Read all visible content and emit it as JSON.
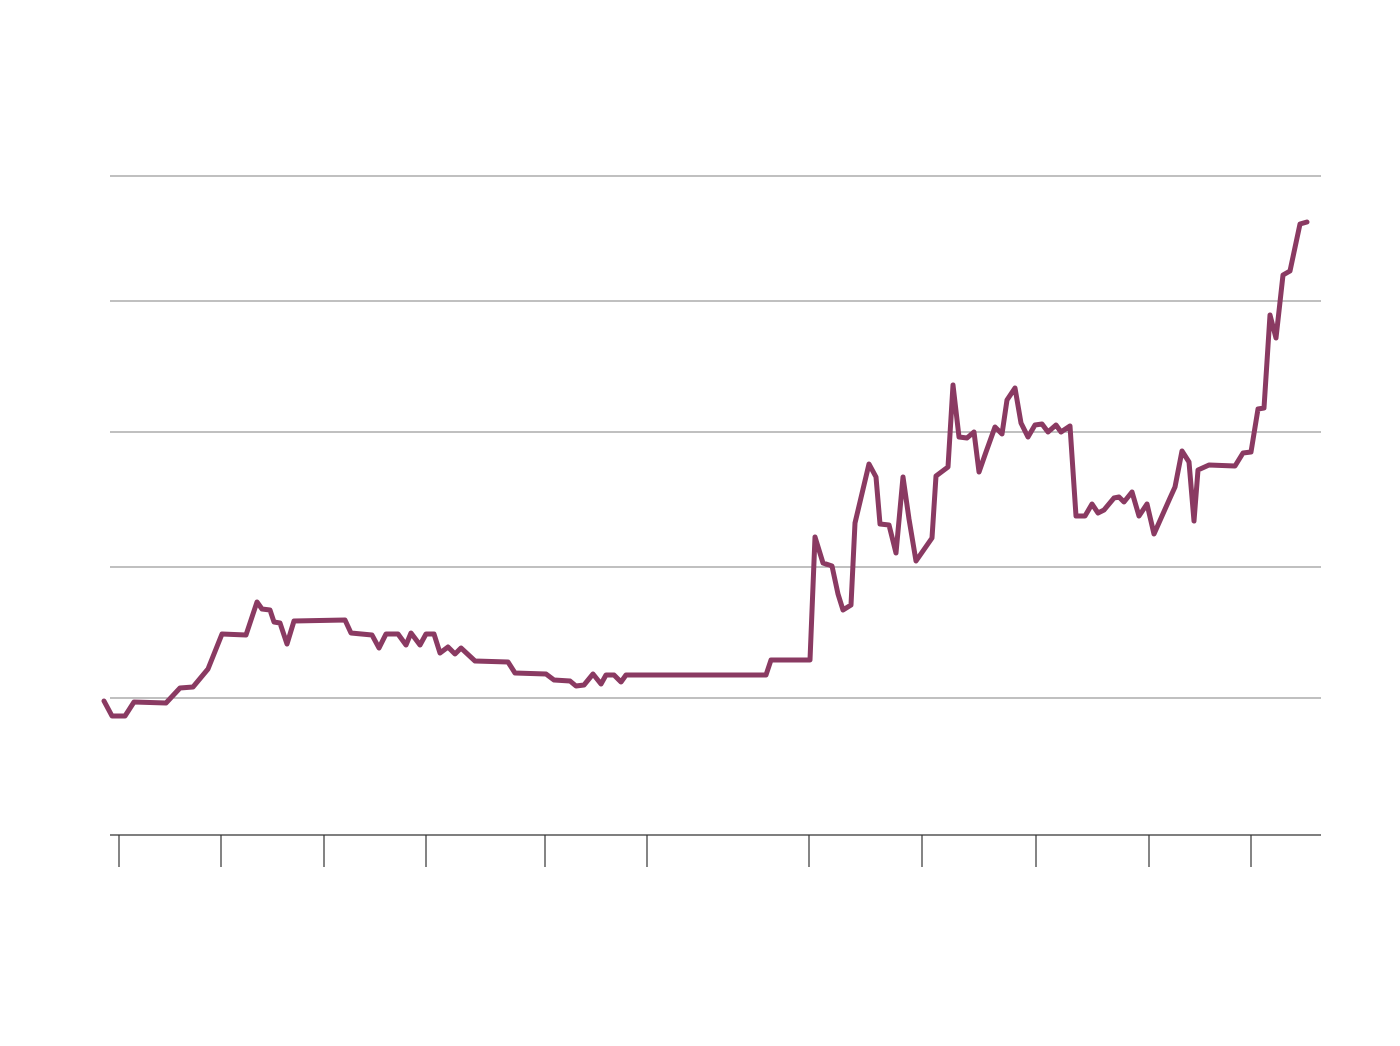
{
  "chart_data": {
    "type": "line",
    "x": [
      104,
      112,
      125,
      134,
      166,
      180,
      193,
      208,
      222,
      246,
      257,
      262,
      270,
      274,
      280,
      287,
      294,
      345,
      351,
      372,
      379,
      386,
      398,
      406,
      411,
      420,
      426,
      434,
      440,
      448,
      455,
      461,
      475,
      508,
      515,
      546,
      554,
      570,
      576,
      584,
      593,
      601,
      606,
      614,
      621,
      626,
      766,
      771,
      810,
      815,
      823,
      832,
      838,
      843,
      851,
      855,
      869,
      876,
      880,
      889,
      896,
      903,
      909,
      916,
      932,
      936,
      948,
      953,
      959,
      967,
      974,
      979,
      986,
      995,
      1002,
      1007,
      1015,
      1021,
      1028,
      1035,
      1042,
      1048,
      1056,
      1061,
      1070,
      1076,
      1085,
      1092,
      1098,
      1104,
      1114,
      1119,
      1124,
      1132,
      1139,
      1147,
      1154,
      1170,
      1175,
      1182,
      1189,
      1194,
      1198,
      1209,
      1235,
      1243,
      1251,
      1258,
      1264,
      1270,
      1276,
      1283,
      1290,
      1300,
      1307
    ],
    "series": [
      {
        "color": "#8a3a62",
        "values": [
          134,
          119,
          119,
          133,
          132,
          147,
          148,
          166,
          201,
          200,
          233,
          226,
          225,
          213,
          212,
          191,
          214,
          215,
          202,
          200,
          187,
          201,
          201,
          190,
          202,
          190,
          201,
          201,
          182,
          188,
          181,
          187,
          174,
          173,
          162,
          161,
          155,
          154,
          149,
          150,
          161,
          151,
          160,
          160,
          153,
          160,
          160,
          175,
          175,
          298,
          272,
          269,
          241,
          225,
          230,
          312,
          371,
          358,
          311,
          310,
          282,
          358,
          316,
          274,
          297,
          359,
          368,
          450,
          398,
          397,
          403,
          363,
          383,
          408,
          401,
          435,
          447,
          412,
          398,
          410,
          411,
          403,
          410,
          403,
          409,
          319,
          319,
          331,
          322,
          325,
          337,
          338,
          333,
          343,
          319,
          331,
          301,
          337,
          348,
          384,
          373,
          314,
          365,
          370,
          369,
          382,
          383,
          426,
          427,
          520,
          497,
          560,
          564,
          611,
          613
        ]
      }
    ],
    "xlim": [
      110,
      1321
    ],
    "ylim": [
      0,
      659
    ],
    "xticks": [
      119,
      221,
      324,
      426,
      545,
      647,
      809,
      922,
      1036,
      1149,
      1251
    ],
    "yticks": [
      137,
      268,
      403,
      534,
      659
    ],
    "grid": true
  }
}
